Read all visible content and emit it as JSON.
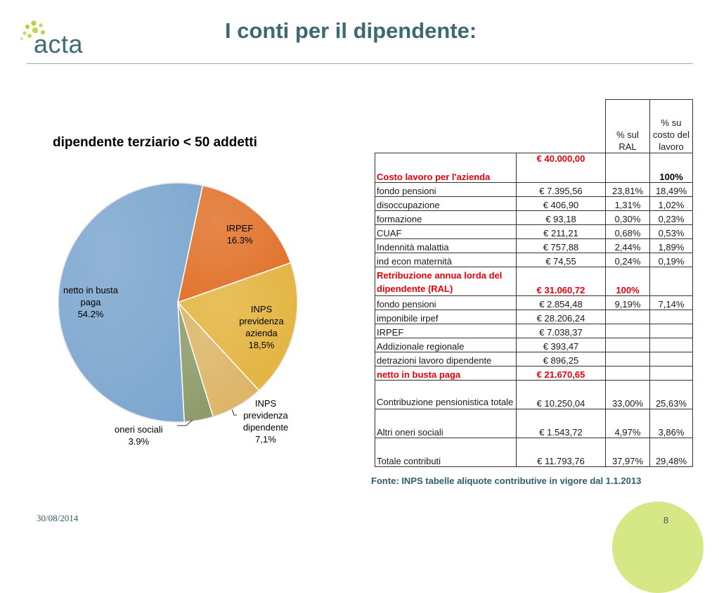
{
  "header": {
    "logo_text": "acta",
    "title": "I conti per il dipendente:"
  },
  "chart_data": {
    "type": "pie",
    "title": "dipendente terziario < 50 addetti",
    "slices": [
      {
        "label": "IRPEF",
        "value_label": "16.3%",
        "value": 16.3,
        "color": "#e1732c"
      },
      {
        "label": "INPS previdenza azienda",
        "value_label": "18,5%",
        "value": 18.5,
        "color": "#e3b440"
      },
      {
        "label": "INPS previdenza dipendente",
        "value_label": "7,1%",
        "value": 7.1,
        "color": "#dcb465"
      },
      {
        "label": "oneri sociali",
        "value_label": "3.9%",
        "value": 3.9,
        "color": "#8c9a68"
      },
      {
        "label": "netto in busta paga",
        "value_label": "54.2%",
        "value": 54.2,
        "color": "#7ea7cf"
      }
    ]
  },
  "table": {
    "headers": [
      "",
      "",
      "% sul RAL",
      "% su costo del lavoro"
    ],
    "rows": [
      {
        "label": "Costo lavoro per l'azienda",
        "value": "€ 40.000,00",
        "pct_ral": "",
        "pct_costo": "100%",
        "highlight": true
      },
      {
        "label": "fondo pensioni",
        "value": "€ 7.395,56",
        "pct_ral": "23,81%",
        "pct_costo": "18,49%"
      },
      {
        "label": "disoccupazione",
        "value": "€ 406,90",
        "pct_ral": "1,31%",
        "pct_costo": "1,02%"
      },
      {
        "label": "formazione",
        "value": "€ 93,18",
        "pct_ral": "0,30%",
        "pct_costo": "0,23%"
      },
      {
        "label": "CUAF",
        "value": "€ 211,21",
        "pct_ral": "0,68%",
        "pct_costo": "0,53%"
      },
      {
        "label": "Indennità malattia",
        "value": "€ 757,88",
        "pct_ral": "2,44%",
        "pct_costo": "1,89%"
      },
      {
        "label": "ind econ maternità",
        "value": "€ 74,55",
        "pct_ral": "0,24%",
        "pct_costo": "0,19%"
      },
      {
        "label": "Retribuzione annua lorda del dipendente (RAL)",
        "value": "€ 31.060,72",
        "pct_ral": "100%",
        "pct_costo": "",
        "highlight": true
      },
      {
        "label": "fondo pensioni",
        "value": "€ 2.854,48",
        "pct_ral": "9,19%",
        "pct_costo": "7,14%"
      },
      {
        "label": " imponibile irpef",
        "value": "€ 28.206,24",
        "pct_ral": "",
        "pct_costo": ""
      },
      {
        "label": " IRPEF",
        "value": "€ 7.038,37",
        "pct_ral": "",
        "pct_costo": ""
      },
      {
        "label": "Addizionale regionale",
        "value": "€ 393,47",
        "pct_ral": "",
        "pct_costo": ""
      },
      {
        "label": " detrazioni lavoro dipendente",
        "value": "€ 896,25",
        "pct_ral": "",
        "pct_costo": ""
      },
      {
        "label": " netto in busta paga",
        "value": "€ 21.670,65",
        "pct_ral": "",
        "pct_costo": "",
        "highlight": true
      },
      {
        "label": "Contribuzione pensionistica totale",
        "value": "€ 10.250,04",
        "pct_ral": "33,00%",
        "pct_costo": "25,63%"
      },
      {
        "label": "Altri oneri sociali",
        "value": "€ 1.543,72",
        "pct_ral": "4,97%",
        "pct_costo": "3,86%"
      },
      {
        "label": "Totale contributi",
        "value": "€ 11.793,76",
        "pct_ral": "37,97%",
        "pct_costo": "29,48%"
      }
    ]
  },
  "source_note": "Fonte: INPS tabelle aliquote contributive in vigore dal 1.1.2013",
  "footer": {
    "date": "30/08/2014",
    "page_number": "8"
  },
  "colors": {
    "title": "#3c6a73",
    "highlight": "#e8000b",
    "badge": "#d6e886"
  }
}
